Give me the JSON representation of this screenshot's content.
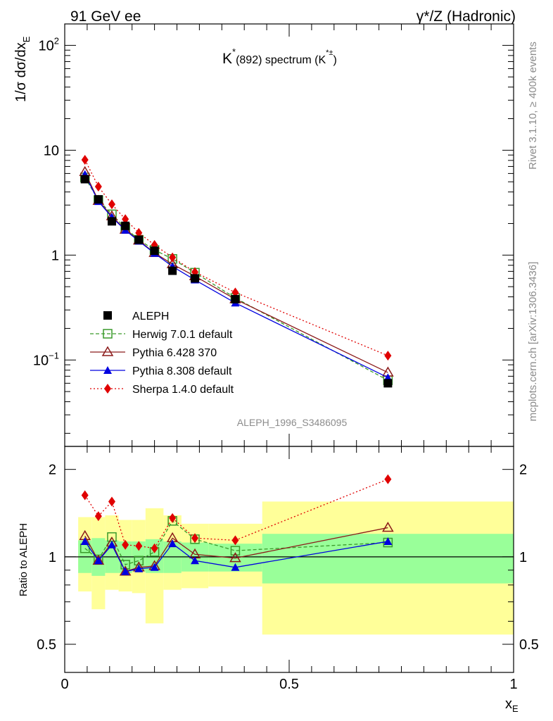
{
  "header": {
    "left": "91 GeV ee",
    "right": "γ*/Z (Hadronic)"
  },
  "side_labels": {
    "rivet": "Rivet 3.1.10, ≥ 400k events",
    "mcplots": "mcplots.cern.ch [arXiv:1306.3436]"
  },
  "chart_data": {
    "type": "line",
    "title": "K*(892) spectrum (K*±)",
    "title_main": "K",
    "title_sup": "*",
    "title_mid": "(892) spectrum (K",
    "title_sup2": "*±",
    "title_end": ")",
    "analysis_id": "ALEPH_1996_S3486095",
    "xlabel": "x",
    "xlabel_sub": "E",
    "ylabel": "1/σ dσ/dx",
    "ylabel_sub": "E",
    "ratio_ylabel": "Ratio to ALEPH",
    "xlim": [
      0,
      1
    ],
    "ylim": [
      0.015,
      160
    ],
    "ratio_ylim": [
      0.4,
      2.4
    ],
    "yscale": "log",
    "ratio_yscale": "log",
    "x_ticks": [
      "0",
      "0.5",
      "1"
    ],
    "x_tick_values": [
      0,
      0.5,
      1
    ],
    "y_ticks": [
      {
        "value": 100,
        "base": "10",
        "exp": "2"
      },
      {
        "value": 10,
        "base": "10",
        "exp": ""
      },
      {
        "value": 1,
        "base": "1",
        "exp": ""
      },
      {
        "value": 0.1,
        "base": "10",
        "exp": "−1"
      }
    ],
    "ratio_ticks": [
      {
        "value": 2,
        "label": "2"
      },
      {
        "value": 1,
        "label": "1"
      },
      {
        "value": 0.5,
        "label": "0.5"
      }
    ],
    "x": [
      0.045,
      0.075,
      0.105,
      0.135,
      0.165,
      0.2,
      0.24,
      0.29,
      0.38,
      0.72
    ],
    "bins": [
      [
        0.03,
        0.06
      ],
      [
        0.06,
        0.09
      ],
      [
        0.09,
        0.12
      ],
      [
        0.12,
        0.15
      ],
      [
        0.15,
        0.18
      ],
      [
        0.18,
        0.22
      ],
      [
        0.22,
        0.26
      ],
      [
        0.26,
        0.32
      ],
      [
        0.32,
        0.44
      ],
      [
        0.44,
        1.0
      ]
    ],
    "band_inner": [
      [
        0.88,
        1.14
      ],
      [
        0.86,
        1.16
      ],
      [
        0.88,
        1.14
      ],
      [
        0.88,
        1.13
      ],
      [
        0.89,
        1.13
      ],
      [
        0.88,
        1.15
      ],
      [
        0.88,
        1.13
      ],
      [
        0.89,
        1.12
      ],
      [
        0.89,
        1.11
      ],
      [
        0.81,
        1.2
      ]
    ],
    "band_outer": [
      [
        0.76,
        1.37
      ],
      [
        0.66,
        1.37
      ],
      [
        0.77,
        1.39
      ],
      [
        0.76,
        1.34
      ],
      [
        0.75,
        1.34
      ],
      [
        0.59,
        1.47
      ],
      [
        0.77,
        1.39
      ],
      [
        0.78,
        1.3
      ],
      [
        0.79,
        1.3
      ],
      [
        0.54,
        1.55
      ]
    ],
    "series": [
      {
        "name": "ALEPH",
        "color": "#000000",
        "marker": "square-filled",
        "dash": "none",
        "values": [
          5.3,
          3.4,
          2.1,
          1.9,
          1.4,
          1.1,
          0.71,
          0.6,
          0.38,
          0.06
        ],
        "ratio": [
          1,
          1,
          1,
          1,
          1,
          1,
          1,
          1,
          1,
          1
        ]
      },
      {
        "name": "Herwig 7.0.1 default",
        "color": "#3a9a2b",
        "marker": "square-open",
        "dash": "5,3",
        "values": [
          5.5,
          3.35,
          2.45,
          1.82,
          1.4,
          1.12,
          0.92,
          0.68,
          0.39,
          0.064
        ],
        "ratio": [
          1.07,
          0.98,
          1.17,
          0.94,
          0.97,
          1.04,
          1.33,
          1.15,
          1.05,
          1.12
        ]
      },
      {
        "name": "Pythia 6.428 370",
        "color": "#8b1a1a",
        "marker": "triangle-open",
        "dash": "none",
        "values": [
          6.2,
          3.3,
          2.35,
          1.75,
          1.38,
          1.05,
          0.82,
          0.63,
          0.38,
          0.076
        ],
        "ratio": [
          1.18,
          0.97,
          1.12,
          0.89,
          0.92,
          0.93,
          1.16,
          1.02,
          0.99,
          1.26
        ]
      },
      {
        "name": "Pythia 8.308 default",
        "color": "#0000e0",
        "marker": "triangle-filled",
        "dash": "none",
        "values": [
          5.9,
          3.25,
          2.3,
          1.73,
          1.36,
          1.04,
          0.78,
          0.58,
          0.35,
          0.068
        ],
        "ratio": [
          1.13,
          0.97,
          1.1,
          0.89,
          0.91,
          0.92,
          1.11,
          0.97,
          0.92,
          1.13
        ]
      },
      {
        "name": "Sherpa 1.4.0 default",
        "color": "#e00000",
        "marker": "diamond-filled",
        "dash": "2,3",
        "values": [
          8.1,
          4.5,
          3.05,
          2.2,
          1.63,
          1.25,
          0.95,
          0.69,
          0.44,
          0.11
        ],
        "ratio": [
          1.63,
          1.38,
          1.55,
          1.1,
          1.09,
          1.07,
          1.36,
          1.16,
          1.14,
          1.85
        ]
      }
    ]
  }
}
